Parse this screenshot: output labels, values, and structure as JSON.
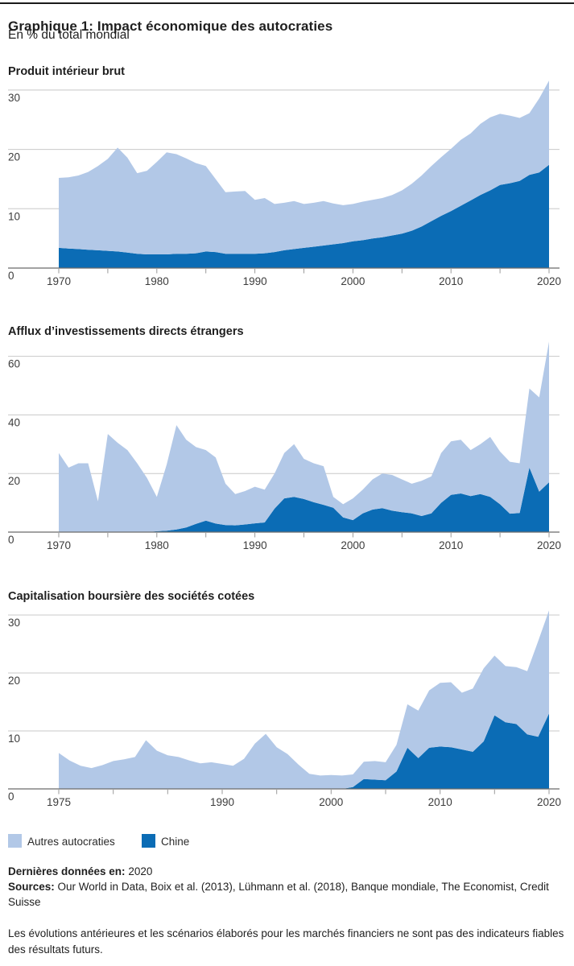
{
  "page": {
    "title": "Graphique 1: Impact économique des autocraties",
    "subtitle": "En % du total mondial"
  },
  "colors": {
    "series": {
      "Chine": "#0b6cb5",
      "Autres autocraties": "#b2c8e7"
    },
    "gridline": "#c8c8c8",
    "axis": "#6b6b6b",
    "tick": "#9a9a9a",
    "label_text": "#3c3c3c",
    "rule": "#1a1a1a"
  },
  "legend": [
    {
      "label": "Autres autocraties"
    },
    {
      "label": "Chine"
    }
  ],
  "footer": {
    "last_data_label": "Dernières données en:",
    "last_data_value": "2020",
    "sources_label": "Sources:",
    "sources_text": "Our World in Data, Boix et al. (2013), Lühmann et al. (2018), Banque mondiale, The Economist, Credit Suisse",
    "disclaimer": "Les évolutions antérieures et les scénarios élaborés pour les marchés financiers ne sont pas des indicateurs fiables des résultats futurs."
  },
  "chart_data": [
    {
      "type": "area",
      "stacked": true,
      "title": "Produit intérieur brut",
      "unit": "% du total mondial",
      "years": {
        "start": 1970,
        "end": 2020,
        "step": 1
      },
      "ylim": [
        0,
        32.3
      ],
      "yticks": [
        0,
        10,
        20,
        30
      ],
      "xticks_labeled": [
        1970,
        1980,
        1990,
        2000,
        2010,
        2020
      ],
      "xtick_minor_step": 5,
      "grid": true,
      "legend_position": "shared-below",
      "series": [
        {
          "name": "Chine",
          "values": [
            3.4,
            3.3,
            3.2,
            3.1,
            3.0,
            2.9,
            2.8,
            2.6,
            2.4,
            2.3,
            2.3,
            2.3,
            2.4,
            2.4,
            2.5,
            2.8,
            2.7,
            2.4,
            2.4,
            2.4,
            2.4,
            2.5,
            2.7,
            3.0,
            3.2,
            3.4,
            3.6,
            3.8,
            4.0,
            4.2,
            4.5,
            4.7,
            5.0,
            5.2,
            5.5,
            5.8,
            6.3,
            7.0,
            7.9,
            8.8,
            9.6,
            10.5,
            11.4,
            12.3,
            13.1,
            14.0,
            14.3,
            14.7,
            15.7,
            16.1,
            17.4
          ]
        },
        {
          "name": "Autres autocraties",
          "values": [
            11.8,
            12.0,
            12.4,
            13.1,
            14.2,
            15.5,
            17.5,
            16.0,
            13.6,
            14.1,
            15.6,
            17.2,
            16.8,
            16.1,
            15.2,
            14.4,
            12.3,
            10.4,
            10.5,
            10.6,
            9.1,
            9.3,
            8.1,
            8.0,
            8.1,
            7.4,
            7.4,
            7.5,
            6.9,
            6.4,
            6.3,
            6.5,
            6.5,
            6.6,
            6.8,
            7.3,
            7.9,
            8.6,
            9.3,
            9.9,
            10.5,
            11.1,
            11.3,
            12.0,
            12.3,
            12.0,
            11.4,
            10.6,
            10.4,
            12.5,
            14.2
          ]
        }
      ]
    },
    {
      "type": "area",
      "stacked": true,
      "title": "Afflux d’investissements directs étrangers",
      "unit": "% du total mondial",
      "years": {
        "start": 1970,
        "end": 2020,
        "step": 1
      },
      "ylim": [
        0,
        66.5
      ],
      "yticks": [
        0,
        20,
        40,
        60
      ],
      "xticks_labeled": [
        1970,
        1980,
        1990,
        2000,
        2010,
        2020
      ],
      "xtick_minor_step": 5,
      "grid": true,
      "legend_position": "shared-below",
      "series": [
        {
          "name": "Chine",
          "values": [
            0,
            0,
            0,
            0,
            0,
            0,
            0,
            0,
            0,
            0,
            0.3,
            0.5,
            0.9,
            1.6,
            2.8,
            3.9,
            2.9,
            2.4,
            2.3,
            2.6,
            3.0,
            3.3,
            8.0,
            11.5,
            12.0,
            11.3,
            10.2,
            9.3,
            8.3,
            5.0,
            4.1,
            6.4,
            7.7,
            8.2,
            7.3,
            6.8,
            6.4,
            5.5,
            6.4,
            10.0,
            12.7,
            13.2,
            12.3,
            13.0,
            12.0,
            9.5,
            6.3,
            6.5,
            22.0,
            13.8,
            17.0
          ]
        },
        {
          "name": "Autres autocraties",
          "values": [
            27,
            22,
            23.5,
            23.5,
            10.5,
            33.5,
            30.5,
            28,
            23.5,
            18.5,
            11.7,
            22.5,
            35.6,
            29.9,
            26.2,
            24.1,
            22.6,
            14.1,
            10.7,
            11.4,
            12.5,
            11.2,
            12.0,
            15.5,
            18.0,
            13.7,
            13.3,
            13.2,
            3.7,
            4.5,
            7.4,
            8.1,
            10.3,
            11.8,
            12.2,
            11.2,
            10.1,
            12.0,
            12.6,
            17.0,
            18.3,
            18.3,
            15.7,
            17.0,
            20.5,
            18.0,
            17.7,
            17.0,
            27.0,
            32.2,
            48.0
          ]
        }
      ]
    },
    {
      "type": "area",
      "stacked": true,
      "title": "Capitalisation boursière des sociétés cotées",
      "unit": "% du total mondial",
      "years": {
        "start": 1975,
        "end": 2020,
        "step": 1
      },
      "ylim": [
        0,
        32.5
      ],
      "yticks": [
        0,
        10,
        20,
        30
      ],
      "xticks_labeled": [
        1975,
        1990,
        2000,
        2010,
        2020
      ],
      "xtick_minor_step": 5,
      "grid": true,
      "legend_position": "shared-below",
      "series": [
        {
          "name": "Chine",
          "values": [
            0,
            0,
            0,
            0,
            0,
            0,
            0,
            0,
            0,
            0,
            0,
            0,
            0,
            0,
            0,
            0,
            0,
            0,
            0,
            0,
            0,
            0,
            0,
            0,
            0,
            0,
            0,
            0.3,
            1.7,
            1.6,
            1.5,
            3.0,
            7.1,
            5.3,
            7.1,
            7.3,
            7.2,
            6.8,
            6.4,
            8.2,
            12.7,
            11.5,
            11.2,
            9.4,
            9.0,
            13.0
          ]
        },
        {
          "name": "Autres autocraties",
          "values": [
            6.2,
            4.9,
            4.0,
            3.6,
            4.1,
            4.8,
            5.1,
            5.5,
            8.4,
            6.6,
            5.8,
            5.5,
            4.9,
            4.4,
            4.6,
            4.3,
            4.0,
            5.2,
            7.8,
            9.5,
            7.2,
            6.0,
            4.2,
            2.6,
            2.3,
            2.4,
            2.3,
            2.2,
            3.0,
            3.2,
            3.1,
            4.6,
            7.5,
            8.2,
            9.9,
            11.0,
            11.2,
            9.8,
            10.9,
            12.6,
            10.3,
            9.7,
            9.8,
            10.9,
            16.5,
            17.8
          ]
        }
      ]
    }
  ]
}
